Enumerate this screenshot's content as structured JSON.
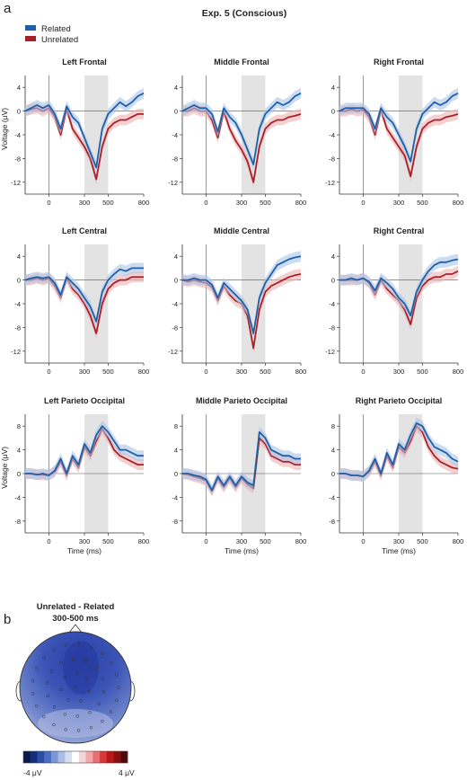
{
  "panel_labels": {
    "a": "a",
    "b": "b"
  },
  "experiment_title": "Exp. 5 (Conscious)",
  "legend": [
    {
      "label": "Related",
      "color": "#1f5fa8"
    },
    {
      "label": "Unrelated",
      "color": "#a8202a"
    }
  ],
  "shading_window_ms": [
    300,
    500
  ],
  "chart_data": [
    {
      "type": "line",
      "title": "Left Frontal",
      "xlabel": "",
      "ylabel": "Voltage (μV)",
      "xlim": [
        -200,
        800
      ],
      "ylim": [
        -14,
        6
      ],
      "x_ticks": [
        0,
        300,
        500,
        800
      ],
      "y_ticks": [
        4,
        0,
        -4,
        -8,
        -12
      ],
      "x": [
        -200,
        -150,
        -100,
        -50,
        0,
        50,
        100,
        150,
        200,
        250,
        300,
        350,
        400,
        450,
        500,
        550,
        600,
        650,
        700,
        750,
        800
      ],
      "series": [
        {
          "name": "Related",
          "values": [
            0,
            0.5,
            1,
            0.5,
            1,
            -0.5,
            -3,
            0.8,
            -1,
            -2,
            -4.5,
            -7,
            -9.5,
            -3,
            -0.5,
            0.5,
            1.5,
            0.8,
            1.5,
            2.5,
            3
          ]
        },
        {
          "name": "Unrelated",
          "values": [
            0,
            0.3,
            0.5,
            0,
            0.5,
            -1,
            -4,
            0.4,
            -3,
            -4.5,
            -6,
            -8,
            -11.5,
            -6,
            -3,
            -2,
            -1.5,
            -1.5,
            -1,
            -0.5,
            -0.5
          ]
        }
      ]
    },
    {
      "type": "line",
      "title": "Middle Frontal",
      "xlabel": "",
      "ylabel": "",
      "xlim": [
        -200,
        800
      ],
      "ylim": [
        -14,
        6
      ],
      "x_ticks": [
        0,
        300,
        500,
        800
      ],
      "y_ticks": [
        4,
        0,
        -4,
        -8,
        -12
      ],
      "x": [
        -200,
        -150,
        -100,
        -50,
        0,
        50,
        100,
        150,
        200,
        250,
        300,
        350,
        400,
        450,
        500,
        550,
        600,
        650,
        700,
        750,
        800
      ],
      "series": [
        {
          "name": "Related",
          "values": [
            0,
            0.5,
            1,
            0.5,
            0.5,
            -0.5,
            -3.5,
            0.5,
            -1,
            -2,
            -4,
            -6.5,
            -9,
            -3,
            -0.5,
            0.5,
            1.5,
            1,
            1.5,
            2.5,
            3
          ]
        },
        {
          "name": "Unrelated",
          "values": [
            0,
            0,
            0.5,
            0,
            0,
            -1.5,
            -4.5,
            0,
            -3,
            -5,
            -6.5,
            -8.5,
            -12,
            -6,
            -3,
            -2,
            -1.5,
            -1.5,
            -1,
            -0.8,
            -0.5
          ]
        }
      ]
    },
    {
      "type": "line",
      "title": "Right Frontal",
      "xlabel": "",
      "ylabel": "",
      "xlim": [
        -200,
        800
      ],
      "ylim": [
        -14,
        6
      ],
      "x_ticks": [
        0,
        300,
        500,
        800
      ],
      "y_ticks": [
        4,
        0,
        -4,
        -8,
        -12
      ],
      "x": [
        -200,
        -150,
        -100,
        -50,
        0,
        50,
        100,
        150,
        200,
        250,
        300,
        350,
        400,
        450,
        500,
        550,
        600,
        650,
        700,
        750,
        800
      ],
      "series": [
        {
          "name": "Related",
          "values": [
            0,
            0.5,
            0.5,
            0.5,
            0.5,
            -0.5,
            -3,
            0.5,
            -1,
            -2,
            -4,
            -6,
            -8.5,
            -3,
            -0.5,
            0.5,
            1.5,
            1,
            1.5,
            2.5,
            3
          ]
        },
        {
          "name": "Unrelated",
          "values": [
            0,
            0,
            0.3,
            0,
            0.2,
            -1,
            -4,
            0.2,
            -3,
            -4.5,
            -6,
            -7.5,
            -11,
            -6,
            -3,
            -2,
            -1.5,
            -1.5,
            -1,
            -0.8,
            -0.5
          ]
        }
      ]
    },
    {
      "type": "line",
      "title": "Left Central",
      "xlabel": "",
      "ylabel": "",
      "xlim": [
        -200,
        800
      ],
      "ylim": [
        -14,
        6
      ],
      "x_ticks": [
        0,
        300,
        500,
        800
      ],
      "y_ticks": [
        4,
        0,
        -4,
        -8,
        -12
      ],
      "x": [
        -200,
        -150,
        -100,
        -50,
        0,
        50,
        100,
        150,
        200,
        250,
        300,
        350,
        400,
        450,
        500,
        550,
        600,
        650,
        700,
        750,
        800
      ],
      "series": [
        {
          "name": "Related",
          "values": [
            0,
            0.3,
            0.5,
            0.3,
            0.5,
            -0.5,
            -2.5,
            0.5,
            -0.5,
            -1.5,
            -3,
            -4.5,
            -7,
            -2,
            0,
            1,
            1.8,
            1.5,
            2,
            2,
            2
          ]
        },
        {
          "name": "Unrelated",
          "values": [
            0,
            0,
            0.3,
            0,
            0.3,
            -1,
            -3,
            0.3,
            -1.5,
            -2.5,
            -4,
            -6,
            -9,
            -4,
            -1.5,
            -0.5,
            0,
            0,
            0.5,
            0.5,
            0.5
          ]
        }
      ]
    },
    {
      "type": "line",
      "title": "Middle Central",
      "xlabel": "",
      "ylabel": "",
      "xlim": [
        -200,
        800
      ],
      "ylim": [
        -14,
        6
      ],
      "x_ticks": [
        0,
        300,
        500,
        800
      ],
      "y_ticks": [
        4,
        0,
        -4,
        -8,
        -12
      ],
      "x": [
        -200,
        -150,
        -100,
        -50,
        0,
        50,
        100,
        150,
        200,
        250,
        300,
        350,
        400,
        450,
        500,
        550,
        600,
        650,
        700,
        750,
        800
      ],
      "series": [
        {
          "name": "Related",
          "values": [
            0,
            0,
            0.3,
            0,
            0,
            -0.8,
            -3,
            -0.5,
            -1.5,
            -2.5,
            -3.5,
            -5,
            -9,
            -3,
            -0.5,
            1,
            2.5,
            3,
            3.5,
            3.8,
            4
          ]
        },
        {
          "name": "Unrelated",
          "values": [
            0,
            -0.3,
            0,
            -0.3,
            -0.5,
            -1.2,
            -3.5,
            -1,
            -2.5,
            -3.5,
            -4,
            -6,
            -11.5,
            -5,
            -2,
            -1,
            -0.5,
            0,
            0.5,
            0.8,
            1
          ]
        }
      ]
    },
    {
      "type": "line",
      "title": "Right Central",
      "xlabel": "",
      "ylabel": "",
      "xlim": [
        -200,
        800
      ],
      "ylim": [
        -14,
        6
      ],
      "x_ticks": [
        0,
        300,
        500,
        800
      ],
      "y_ticks": [
        4,
        0,
        -4,
        -8,
        -12
      ],
      "x": [
        -200,
        -150,
        -100,
        -50,
        0,
        50,
        100,
        150,
        200,
        250,
        300,
        350,
        400,
        450,
        500,
        550,
        600,
        650,
        700,
        750,
        800
      ],
      "series": [
        {
          "name": "Related",
          "values": [
            0,
            0,
            0.3,
            0,
            0.3,
            -0.3,
            -1.8,
            0.3,
            -0.5,
            -1.5,
            -3,
            -4,
            -6,
            -2,
            0,
            1.5,
            2.5,
            3,
            3,
            3.3,
            3.5
          ]
        },
        {
          "name": "Unrelated",
          "values": [
            0,
            0,
            0,
            0,
            0.3,
            -0.5,
            -2.5,
            0,
            -1.5,
            -2.5,
            -3.5,
            -5,
            -7.5,
            -3,
            -1,
            0,
            0.5,
            0.5,
            1,
            1,
            1.5
          ]
        }
      ]
    },
    {
      "type": "line",
      "title": "Left Parieto Occipital",
      "xlabel": "Time (ms)",
      "ylabel": "Voltage (μV)",
      "xlim": [
        -200,
        800
      ],
      "ylim": [
        -10,
        10
      ],
      "x_ticks": [
        0,
        300,
        500,
        800
      ],
      "y_ticks": [
        8,
        4,
        0,
        -4,
        -8
      ],
      "x": [
        -200,
        -150,
        -100,
        -50,
        0,
        50,
        100,
        150,
        200,
        250,
        300,
        350,
        400,
        450,
        500,
        550,
        600,
        650,
        700,
        750,
        800
      ],
      "series": [
        {
          "name": "Related",
          "values": [
            0,
            0,
            -0.2,
            0,
            -0.3,
            0.5,
            2.5,
            0,
            3,
            1.5,
            5,
            3.5,
            6.5,
            8,
            7,
            5.5,
            4,
            4,
            3.5,
            3,
            3
          ]
        },
        {
          "name": "Unrelated",
          "values": [
            0,
            0,
            -0.2,
            -0.2,
            -0.3,
            0.3,
            2,
            -0.3,
            2.5,
            1,
            4.5,
            3,
            5.5,
            7.5,
            6,
            4,
            3,
            2.5,
            2,
            1.5,
            1.5
          ]
        }
      ]
    },
    {
      "type": "line",
      "title": "Middle Parieto Occipital",
      "xlabel": "Time (ms)",
      "ylabel": "",
      "xlim": [
        -200,
        800
      ],
      "ylim": [
        -10,
        10
      ],
      "x_ticks": [
        0,
        300,
        500,
        800
      ],
      "y_ticks": [
        8,
        4,
        0,
        -4,
        -8
      ],
      "x": [
        -200,
        -150,
        -100,
        -50,
        0,
        50,
        100,
        150,
        200,
        250,
        300,
        350,
        400,
        450,
        500,
        550,
        600,
        650,
        700,
        750,
        800
      ],
      "series": [
        {
          "name": "Related",
          "values": [
            0,
            0,
            -0.3,
            -0.5,
            -1,
            -2.8,
            -0.5,
            -2,
            -0.5,
            -2,
            -0.5,
            -1.5,
            -2,
            7,
            6,
            4,
            3.5,
            3,
            3,
            2.5,
            2.5
          ]
        },
        {
          "name": "Unrelated",
          "values": [
            0,
            -0.2,
            -0.5,
            -0.8,
            -1.2,
            -3,
            -0.8,
            -2.3,
            -0.8,
            -2.3,
            -0.8,
            -1.8,
            -2.5,
            6,
            5,
            3,
            2.5,
            2,
            2,
            1.5,
            1.5
          ]
        }
      ]
    },
    {
      "type": "line",
      "title": "Right Parieto Occipital",
      "xlabel": "Time (ms)",
      "ylabel": "",
      "xlim": [
        -200,
        800
      ],
      "ylim": [
        -10,
        10
      ],
      "x_ticks": [
        0,
        300,
        500,
        800
      ],
      "y_ticks": [
        8,
        4,
        0,
        -4,
        -8
      ],
      "x": [
        -200,
        -150,
        -100,
        -50,
        0,
        50,
        100,
        150,
        200,
        250,
        300,
        350,
        400,
        450,
        500,
        550,
        600,
        650,
        700,
        750,
        800
      ],
      "series": [
        {
          "name": "Related",
          "values": [
            0,
            0,
            -0.3,
            -0.3,
            -0.5,
            0.5,
            2.5,
            0,
            3.5,
            1.5,
            5,
            4,
            6.5,
            8.5,
            8,
            6,
            4.5,
            4,
            3.5,
            2.5,
            2
          ]
        },
        {
          "name": "Unrelated",
          "values": [
            0,
            0,
            -0.3,
            -0.3,
            -0.5,
            0.3,
            2,
            -0.3,
            3,
            1,
            4.5,
            3.5,
            5.5,
            8,
            7,
            4.5,
            3,
            2,
            1.5,
            1,
            0.8
          ]
        }
      ]
    }
  ],
  "topomap": {
    "title_line1": "Unrelated - Related",
    "title_line2": "300-500 ms",
    "colorbar_min_label": "-4 μV",
    "colorbar_max_label": "4 μV",
    "colorbar_colors": [
      "#0b1a4a",
      "#14307a",
      "#2a4ea8",
      "#4a6ec0",
      "#7c98d4",
      "#aabde3",
      "#d6def0",
      "#ffffff",
      "#f3d6d6",
      "#f0a8a8",
      "#e87070",
      "#d83838",
      "#b81818",
      "#8a1010",
      "#500808"
    ]
  }
}
